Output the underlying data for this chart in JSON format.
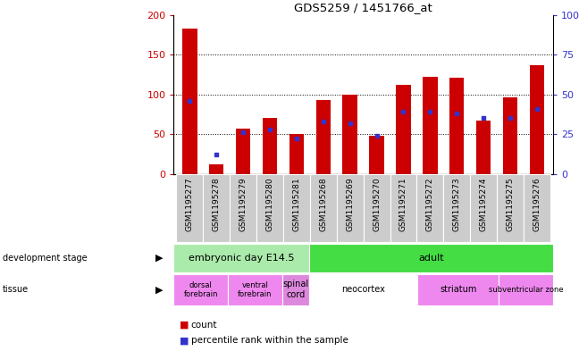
{
  "title": "GDS5259 / 1451766_at",
  "samples": [
    "GSM1195277",
    "GSM1195278",
    "GSM1195279",
    "GSM1195280",
    "GSM1195281",
    "GSM1195268",
    "GSM1195269",
    "GSM1195270",
    "GSM1195271",
    "GSM1195272",
    "GSM1195273",
    "GSM1195274",
    "GSM1195275",
    "GSM1195276"
  ],
  "counts": [
    183,
    12,
    57,
    70,
    50,
    93,
    100,
    48,
    112,
    122,
    121,
    67,
    96,
    136
  ],
  "percentiles": [
    46,
    12,
    26,
    28,
    22,
    33,
    32,
    24,
    39,
    39,
    38,
    35,
    35,
    41
  ],
  "ylim_left": [
    0,
    200
  ],
  "ylim_right": [
    0,
    100
  ],
  "yticks_left": [
    0,
    50,
    100,
    150,
    200
  ],
  "yticks_right": [
    0,
    25,
    50,
    75,
    100
  ],
  "yticklabels_right": [
    "0",
    "25",
    "50",
    "75",
    "100%"
  ],
  "bar_color": "#cc0000",
  "dot_color": "#3333cc",
  "left_tick_color": "#cc0000",
  "right_tick_color": "#3333cc",
  "development_stages": [
    {
      "label": "embryonic day E14.5",
      "start": 0,
      "end": 5,
      "color": "#aaeaaa"
    },
    {
      "label": "adult",
      "start": 5,
      "end": 14,
      "color": "#44dd44"
    }
  ],
  "tissues": [
    {
      "label": "dorsal\nforebrain",
      "start": 0,
      "end": 2,
      "color": "#ee88ee"
    },
    {
      "label": "ventral\nforebrain",
      "start": 2,
      "end": 4,
      "color": "#ee88ee"
    },
    {
      "label": "spinal\ncord",
      "start": 4,
      "end": 5,
      "color": "#dd88dd"
    },
    {
      "label": "neocortex",
      "start": 5,
      "end": 9,
      "color": "#ffffff"
    },
    {
      "label": "striatum",
      "start": 9,
      "end": 12,
      "color": "#ee88ee"
    },
    {
      "label": "subventricular zone",
      "start": 12,
      "end": 14,
      "color": "#ee88ee"
    }
  ],
  "legend_count_color": "#cc0000",
  "legend_dot_color": "#3333cc",
  "xticklabel_bg": "#cccccc",
  "fig_width": 6.48,
  "fig_height": 3.93,
  "dpi": 100
}
